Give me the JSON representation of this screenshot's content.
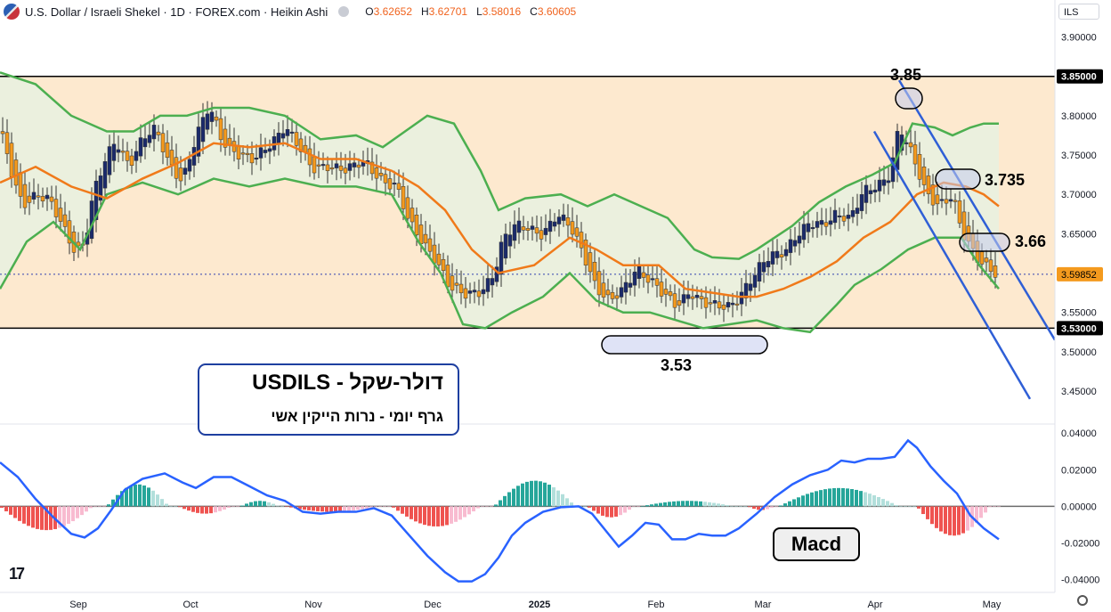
{
  "header": {
    "symbol_title": "U.S. Dollar / Israeli Shekel · 1D · FOREX.com · Heikin Ashi",
    "ohlc": {
      "o_label": "O",
      "o": "3.62652",
      "h_label": "H",
      "h": "3.62701",
      "l_label": "L",
      "l": "3.58016",
      "c_label": "C",
      "c": "3.60605"
    },
    "currency_unit": "ILS"
  },
  "colors": {
    "bull_candle": "#1b2a6b",
    "bear_candle": "#f49a1e",
    "band_line": "#4caf50",
    "band_fill": "#e9f1df",
    "range_fill": "#fde9cf",
    "basis_line": "#f07a1a",
    "trend_line": "#2f5fd6",
    "hist_pos_strong": "#26a69a",
    "hist_pos_weak": "#b2dfdb",
    "hist_neg_strong": "#ef5350",
    "hist_neg_weak": "#f8bbd0",
    "macd_line": "#2962ff"
  },
  "annotations": {
    "info_title": "דולר-שקל - USDILS",
    "info_subtitle": "גרף  יומי   - נרות הייקין אשי",
    "macd_label": "Macd",
    "label_385": "3.85",
    "label_3735": "3.735",
    "label_366": "3.66",
    "label_353": "3.53"
  },
  "chart_data": [
    {
      "type": "candlestick",
      "candle_style": "Heikin Ashi",
      "x_ticks": [
        "Sep",
        "Oct",
        "Nov",
        "Dec",
        "2025",
        "Feb",
        "Mar",
        "Apr",
        "May"
      ],
      "y_ticks": [
        "3.90000",
        "3.85000",
        "3.80000",
        "3.75000",
        "3.70000",
        "3.65000",
        "3.60000",
        "3.55000",
        "3.50000",
        "3.45000"
      ],
      "y_tick_values": [
        3.9,
        3.85,
        3.8,
        3.75,
        3.7,
        3.65,
        3.6,
        3.55,
        3.5,
        3.45
      ],
      "ylim": [
        3.415,
        3.947
      ],
      "highlighted_levels": [
        {
          "label": "3.85000",
          "value": 3.85
        },
        {
          "label": "3.53000",
          "value": 3.53
        }
      ],
      "last_price": {
        "label": "3.59852",
        "value": 3.59852
      },
      "close_path": [
        {
          "x": 0,
          "y": 3.78
        },
        {
          "x": 15,
          "y": 3.72
        },
        {
          "x": 25,
          "y": 3.69
        },
        {
          "x": 40,
          "y": 3.7
        },
        {
          "x": 55,
          "y": 3.69
        },
        {
          "x": 70,
          "y": 3.66
        },
        {
          "x": 85,
          "y": 3.63
        },
        {
          "x": 95,
          "y": 3.64
        },
        {
          "x": 105,
          "y": 3.7
        },
        {
          "x": 118,
          "y": 3.74
        },
        {
          "x": 130,
          "y": 3.77
        },
        {
          "x": 145,
          "y": 3.74
        },
        {
          "x": 160,
          "y": 3.77
        },
        {
          "x": 175,
          "y": 3.78
        },
        {
          "x": 190,
          "y": 3.74
        },
        {
          "x": 205,
          "y": 3.72
        },
        {
          "x": 220,
          "y": 3.77
        },
        {
          "x": 235,
          "y": 3.81
        },
        {
          "x": 250,
          "y": 3.77
        },
        {
          "x": 270,
          "y": 3.75
        },
        {
          "x": 285,
          "y": 3.74
        },
        {
          "x": 300,
          "y": 3.76
        },
        {
          "x": 320,
          "y": 3.79
        },
        {
          "x": 335,
          "y": 3.76
        },
        {
          "x": 350,
          "y": 3.73
        },
        {
          "x": 370,
          "y": 3.74
        },
        {
          "x": 390,
          "y": 3.73
        },
        {
          "x": 410,
          "y": 3.74
        },
        {
          "x": 430,
          "y": 3.72
        },
        {
          "x": 445,
          "y": 3.71
        },
        {
          "x": 460,
          "y": 3.66
        },
        {
          "x": 475,
          "y": 3.64
        },
        {
          "x": 490,
          "y": 3.62
        },
        {
          "x": 505,
          "y": 3.58
        },
        {
          "x": 520,
          "y": 3.57
        },
        {
          "x": 540,
          "y": 3.58
        },
        {
          "x": 555,
          "y": 3.6
        },
        {
          "x": 565,
          "y": 3.64
        },
        {
          "x": 580,
          "y": 3.66
        },
        {
          "x": 595,
          "y": 3.66
        },
        {
          "x": 610,
          "y": 3.65
        },
        {
          "x": 625,
          "y": 3.67
        },
        {
          "x": 640,
          "y": 3.66
        },
        {
          "x": 655,
          "y": 3.63
        },
        {
          "x": 670,
          "y": 3.58
        },
        {
          "x": 685,
          "y": 3.56
        },
        {
          "x": 700,
          "y": 3.58
        },
        {
          "x": 715,
          "y": 3.61
        },
        {
          "x": 730,
          "y": 3.59
        },
        {
          "x": 745,
          "y": 3.57
        },
        {
          "x": 760,
          "y": 3.56
        },
        {
          "x": 775,
          "y": 3.58
        },
        {
          "x": 790,
          "y": 3.56
        },
        {
          "x": 805,
          "y": 3.555
        },
        {
          "x": 820,
          "y": 3.56
        },
        {
          "x": 835,
          "y": 3.58
        },
        {
          "x": 850,
          "y": 3.6
        },
        {
          "x": 865,
          "y": 3.62
        },
        {
          "x": 880,
          "y": 3.63
        },
        {
          "x": 895,
          "y": 3.65
        },
        {
          "x": 910,
          "y": 3.66
        },
        {
          "x": 925,
          "y": 3.66
        },
        {
          "x": 940,
          "y": 3.68
        },
        {
          "x": 955,
          "y": 3.67
        },
        {
          "x": 970,
          "y": 3.7
        },
        {
          "x": 985,
          "y": 3.71
        },
        {
          "x": 1000,
          "y": 3.73
        },
        {
          "x": 1010,
          "y": 3.79
        },
        {
          "x": 1020,
          "y": 3.76
        },
        {
          "x": 1030,
          "y": 3.73
        },
        {
          "x": 1040,
          "y": 3.7
        },
        {
          "x": 1055,
          "y": 3.69
        },
        {
          "x": 1070,
          "y": 3.7
        },
        {
          "x": 1080,
          "y": 3.65
        },
        {
          "x": 1095,
          "y": 3.62
        },
        {
          "x": 1110,
          "y": 3.61
        },
        {
          "x": 1122,
          "y": 3.6
        }
      ],
      "upper_band": [
        {
          "x": 0,
          "y": 3.855
        },
        {
          "x": 40,
          "y": 3.84
        },
        {
          "x": 80,
          "y": 3.8
        },
        {
          "x": 120,
          "y": 3.78
        },
        {
          "x": 150,
          "y": 3.78
        },
        {
          "x": 180,
          "y": 3.8
        },
        {
          "x": 210,
          "y": 3.8
        },
        {
          "x": 240,
          "y": 3.81
        },
        {
          "x": 280,
          "y": 3.81
        },
        {
          "x": 320,
          "y": 3.8
        },
        {
          "x": 360,
          "y": 3.77
        },
        {
          "x": 400,
          "y": 3.775
        },
        {
          "x": 430,
          "y": 3.76
        },
        {
          "x": 455,
          "y": 3.78
        },
        {
          "x": 480,
          "y": 3.8
        },
        {
          "x": 510,
          "y": 3.79
        },
        {
          "x": 540,
          "y": 3.73
        },
        {
          "x": 560,
          "y": 3.68
        },
        {
          "x": 590,
          "y": 3.695
        },
        {
          "x": 630,
          "y": 3.7
        },
        {
          "x": 660,
          "y": 3.685
        },
        {
          "x": 690,
          "y": 3.7
        },
        {
          "x": 720,
          "y": 3.685
        },
        {
          "x": 750,
          "y": 3.67
        },
        {
          "x": 780,
          "y": 3.63
        },
        {
          "x": 800,
          "y": 3.62
        },
        {
          "x": 830,
          "y": 3.618
        },
        {
          "x": 850,
          "y": 3.63
        },
        {
          "x": 870,
          "y": 3.645
        },
        {
          "x": 890,
          "y": 3.66
        },
        {
          "x": 920,
          "y": 3.69
        },
        {
          "x": 950,
          "y": 3.71
        },
        {
          "x": 980,
          "y": 3.725
        },
        {
          "x": 1005,
          "y": 3.74
        },
        {
          "x": 1025,
          "y": 3.79
        },
        {
          "x": 1050,
          "y": 3.785
        },
        {
          "x": 1070,
          "y": 3.775
        },
        {
          "x": 1090,
          "y": 3.785
        },
        {
          "x": 1105,
          "y": 3.79
        },
        {
          "x": 1122,
          "y": 3.79
        }
      ],
      "lower_band": [
        {
          "x": 0,
          "y": 3.58
        },
        {
          "x": 30,
          "y": 3.64
        },
        {
          "x": 60,
          "y": 3.665
        },
        {
          "x": 90,
          "y": 3.63
        },
        {
          "x": 120,
          "y": 3.7
        },
        {
          "x": 160,
          "y": 3.715
        },
        {
          "x": 200,
          "y": 3.7
        },
        {
          "x": 240,
          "y": 3.72
        },
        {
          "x": 280,
          "y": 3.71
        },
        {
          "x": 320,
          "y": 3.72
        },
        {
          "x": 360,
          "y": 3.71
        },
        {
          "x": 400,
          "y": 3.71
        },
        {
          "x": 440,
          "y": 3.7
        },
        {
          "x": 470,
          "y": 3.64
        },
        {
          "x": 495,
          "y": 3.6
        },
        {
          "x": 520,
          "y": 3.535
        },
        {
          "x": 545,
          "y": 3.53
        },
        {
          "x": 575,
          "y": 3.55
        },
        {
          "x": 610,
          "y": 3.57
        },
        {
          "x": 640,
          "y": 3.6
        },
        {
          "x": 670,
          "y": 3.565
        },
        {
          "x": 700,
          "y": 3.55
        },
        {
          "x": 730,
          "y": 3.55
        },
        {
          "x": 760,
          "y": 3.54
        },
        {
          "x": 790,
          "y": 3.53
        },
        {
          "x": 820,
          "y": 3.535
        },
        {
          "x": 850,
          "y": 3.54
        },
        {
          "x": 880,
          "y": 3.53
        },
        {
          "x": 910,
          "y": 3.525
        },
        {
          "x": 940,
          "y": 3.56
        },
        {
          "x": 960,
          "y": 3.585
        },
        {
          "x": 990,
          "y": 3.605
        },
        {
          "x": 1020,
          "y": 3.63
        },
        {
          "x": 1050,
          "y": 3.645
        },
        {
          "x": 1080,
          "y": 3.645
        },
        {
          "x": 1100,
          "y": 3.61
        },
        {
          "x": 1122,
          "y": 3.58
        }
      ],
      "basis": [
        {
          "x": 0,
          "y": 3.715
        },
        {
          "x": 40,
          "y": 3.735
        },
        {
          "x": 80,
          "y": 3.71
        },
        {
          "x": 120,
          "y": 3.695
        },
        {
          "x": 160,
          "y": 3.72
        },
        {
          "x": 200,
          "y": 3.74
        },
        {
          "x": 240,
          "y": 3.765
        },
        {
          "x": 280,
          "y": 3.76
        },
        {
          "x": 320,
          "y": 3.765
        },
        {
          "x": 360,
          "y": 3.745
        },
        {
          "x": 400,
          "y": 3.745
        },
        {
          "x": 440,
          "y": 3.73
        },
        {
          "x": 470,
          "y": 3.71
        },
        {
          "x": 500,
          "y": 3.68
        },
        {
          "x": 530,
          "y": 3.63
        },
        {
          "x": 560,
          "y": 3.6
        },
        {
          "x": 600,
          "y": 3.61
        },
        {
          "x": 640,
          "y": 3.645
        },
        {
          "x": 670,
          "y": 3.63
        },
        {
          "x": 700,
          "y": 3.61
        },
        {
          "x": 740,
          "y": 3.61
        },
        {
          "x": 770,
          "y": 3.58
        },
        {
          "x": 800,
          "y": 3.575
        },
        {
          "x": 830,
          "y": 3.57
        },
        {
          "x": 850,
          "y": 3.57
        },
        {
          "x": 880,
          "y": 3.58
        },
        {
          "x": 910,
          "y": 3.595
        },
        {
          "x": 940,
          "y": 3.615
        },
        {
          "x": 970,
          "y": 3.645
        },
        {
          "x": 1000,
          "y": 3.665
        },
        {
          "x": 1030,
          "y": 3.7
        },
        {
          "x": 1060,
          "y": 3.715
        },
        {
          "x": 1085,
          "y": 3.71
        },
        {
          "x": 1105,
          "y": 3.7
        },
        {
          "x": 1122,
          "y": 3.685
        }
      ],
      "trend_lines": [
        {
          "x1": 1010,
          "y1": 3.845,
          "x2": 1185,
          "y2": 3.515
        },
        {
          "x1": 982,
          "y1": 3.78,
          "x2": 1157,
          "y2": 3.44
        }
      ]
    },
    {
      "type": "macd",
      "y_ticks": [
        "0.04000",
        "0.02000",
        "0.00000",
        "-0.02000",
        "-0.04000"
      ],
      "y_tick_values": [
        0.04,
        0.02,
        0.0,
        -0.02,
        -0.04
      ],
      "ylim": [
        -0.047,
        0.043
      ],
      "macd_line": [
        {
          "x": 0,
          "y": 0.024
        },
        {
          "x": 20,
          "y": 0.016
        },
        {
          "x": 40,
          "y": 0.004
        },
        {
          "x": 60,
          "y": -0.006
        },
        {
          "x": 80,
          "y": -0.015
        },
        {
          "x": 95,
          "y": -0.017
        },
        {
          "x": 110,
          "y": -0.012
        },
        {
          "x": 125,
          "y": -0.002
        },
        {
          "x": 140,
          "y": 0.009
        },
        {
          "x": 160,
          "y": 0.015
        },
        {
          "x": 185,
          "y": 0.018
        },
        {
          "x": 205,
          "y": 0.013
        },
        {
          "x": 220,
          "y": 0.01
        },
        {
          "x": 240,
          "y": 0.016
        },
        {
          "x": 260,
          "y": 0.016
        },
        {
          "x": 280,
          "y": 0.011
        },
        {
          "x": 300,
          "y": 0.006
        },
        {
          "x": 320,
          "y": 0.003
        },
        {
          "x": 340,
          "y": -0.003
        },
        {
          "x": 360,
          "y": -0.004
        },
        {
          "x": 380,
          "y": -0.003
        },
        {
          "x": 400,
          "y": -0.003
        },
        {
          "x": 420,
          "y": -0.001
        },
        {
          "x": 440,
          "y": -0.005
        },
        {
          "x": 460,
          "y": -0.016
        },
        {
          "x": 480,
          "y": -0.027
        },
        {
          "x": 500,
          "y": -0.036
        },
        {
          "x": 515,
          "y": -0.041
        },
        {
          "x": 530,
          "y": -0.041
        },
        {
          "x": 545,
          "y": -0.037
        },
        {
          "x": 560,
          "y": -0.028
        },
        {
          "x": 575,
          "y": -0.016
        },
        {
          "x": 590,
          "y": -0.009
        },
        {
          "x": 610,
          "y": -0.003
        },
        {
          "x": 630,
          "y": -0.0005
        },
        {
          "x": 650,
          "y": 0.0
        },
        {
          "x": 665,
          "y": -0.004
        },
        {
          "x": 680,
          "y": -0.013
        },
        {
          "x": 695,
          "y": -0.022
        },
        {
          "x": 710,
          "y": -0.016
        },
        {
          "x": 725,
          "y": -0.009
        },
        {
          "x": 740,
          "y": -0.01
        },
        {
          "x": 755,
          "y": -0.018
        },
        {
          "x": 770,
          "y": -0.018
        },
        {
          "x": 785,
          "y": -0.015
        },
        {
          "x": 800,
          "y": -0.016
        },
        {
          "x": 815,
          "y": -0.016
        },
        {
          "x": 830,
          "y": -0.012
        },
        {
          "x": 850,
          "y": -0.004
        },
        {
          "x": 870,
          "y": 0.005
        },
        {
          "x": 890,
          "y": 0.012
        },
        {
          "x": 910,
          "y": 0.017
        },
        {
          "x": 930,
          "y": 0.02
        },
        {
          "x": 945,
          "y": 0.025
        },
        {
          "x": 960,
          "y": 0.024
        },
        {
          "x": 975,
          "y": 0.026
        },
        {
          "x": 990,
          "y": 0.026
        },
        {
          "x": 1005,
          "y": 0.027
        },
        {
          "x": 1020,
          "y": 0.036
        },
        {
          "x": 1030,
          "y": 0.032
        },
        {
          "x": 1045,
          "y": 0.022
        },
        {
          "x": 1060,
          "y": 0.014
        },
        {
          "x": 1075,
          "y": 0.007
        },
        {
          "x": 1090,
          "y": -0.005
        },
        {
          "x": 1105,
          "y": -0.012
        },
        {
          "x": 1122,
          "y": -0.018
        }
      ],
      "histogram_segments": [
        {
          "from": 0,
          "to": 120,
          "peak": -0.013,
          "shape": "u"
        },
        {
          "from": 120,
          "to": 200,
          "peak": 0.012,
          "shape": "n"
        },
        {
          "from": 200,
          "to": 270,
          "peak": -0.004,
          "shape": "u"
        },
        {
          "from": 270,
          "to": 320,
          "peak": 0.003,
          "shape": "n"
        },
        {
          "from": 320,
          "to": 440,
          "peak": -0.003,
          "shape": "u"
        },
        {
          "from": 440,
          "to": 555,
          "peak": -0.011,
          "shape": "u"
        },
        {
          "from": 555,
          "to": 660,
          "peak": 0.014,
          "shape": "n"
        },
        {
          "from": 660,
          "to": 720,
          "peak": -0.006,
          "shape": "u"
        },
        {
          "from": 720,
          "to": 840,
          "peak": 0.003,
          "shape": "n"
        },
        {
          "from": 840,
          "to": 875,
          "peak": -0.002,
          "shape": "u"
        },
        {
          "from": 875,
          "to": 1030,
          "peak": 0.01,
          "shape": "n"
        },
        {
          "from": 1030,
          "to": 1125,
          "peak": -0.016,
          "shape": "u"
        }
      ]
    }
  ]
}
